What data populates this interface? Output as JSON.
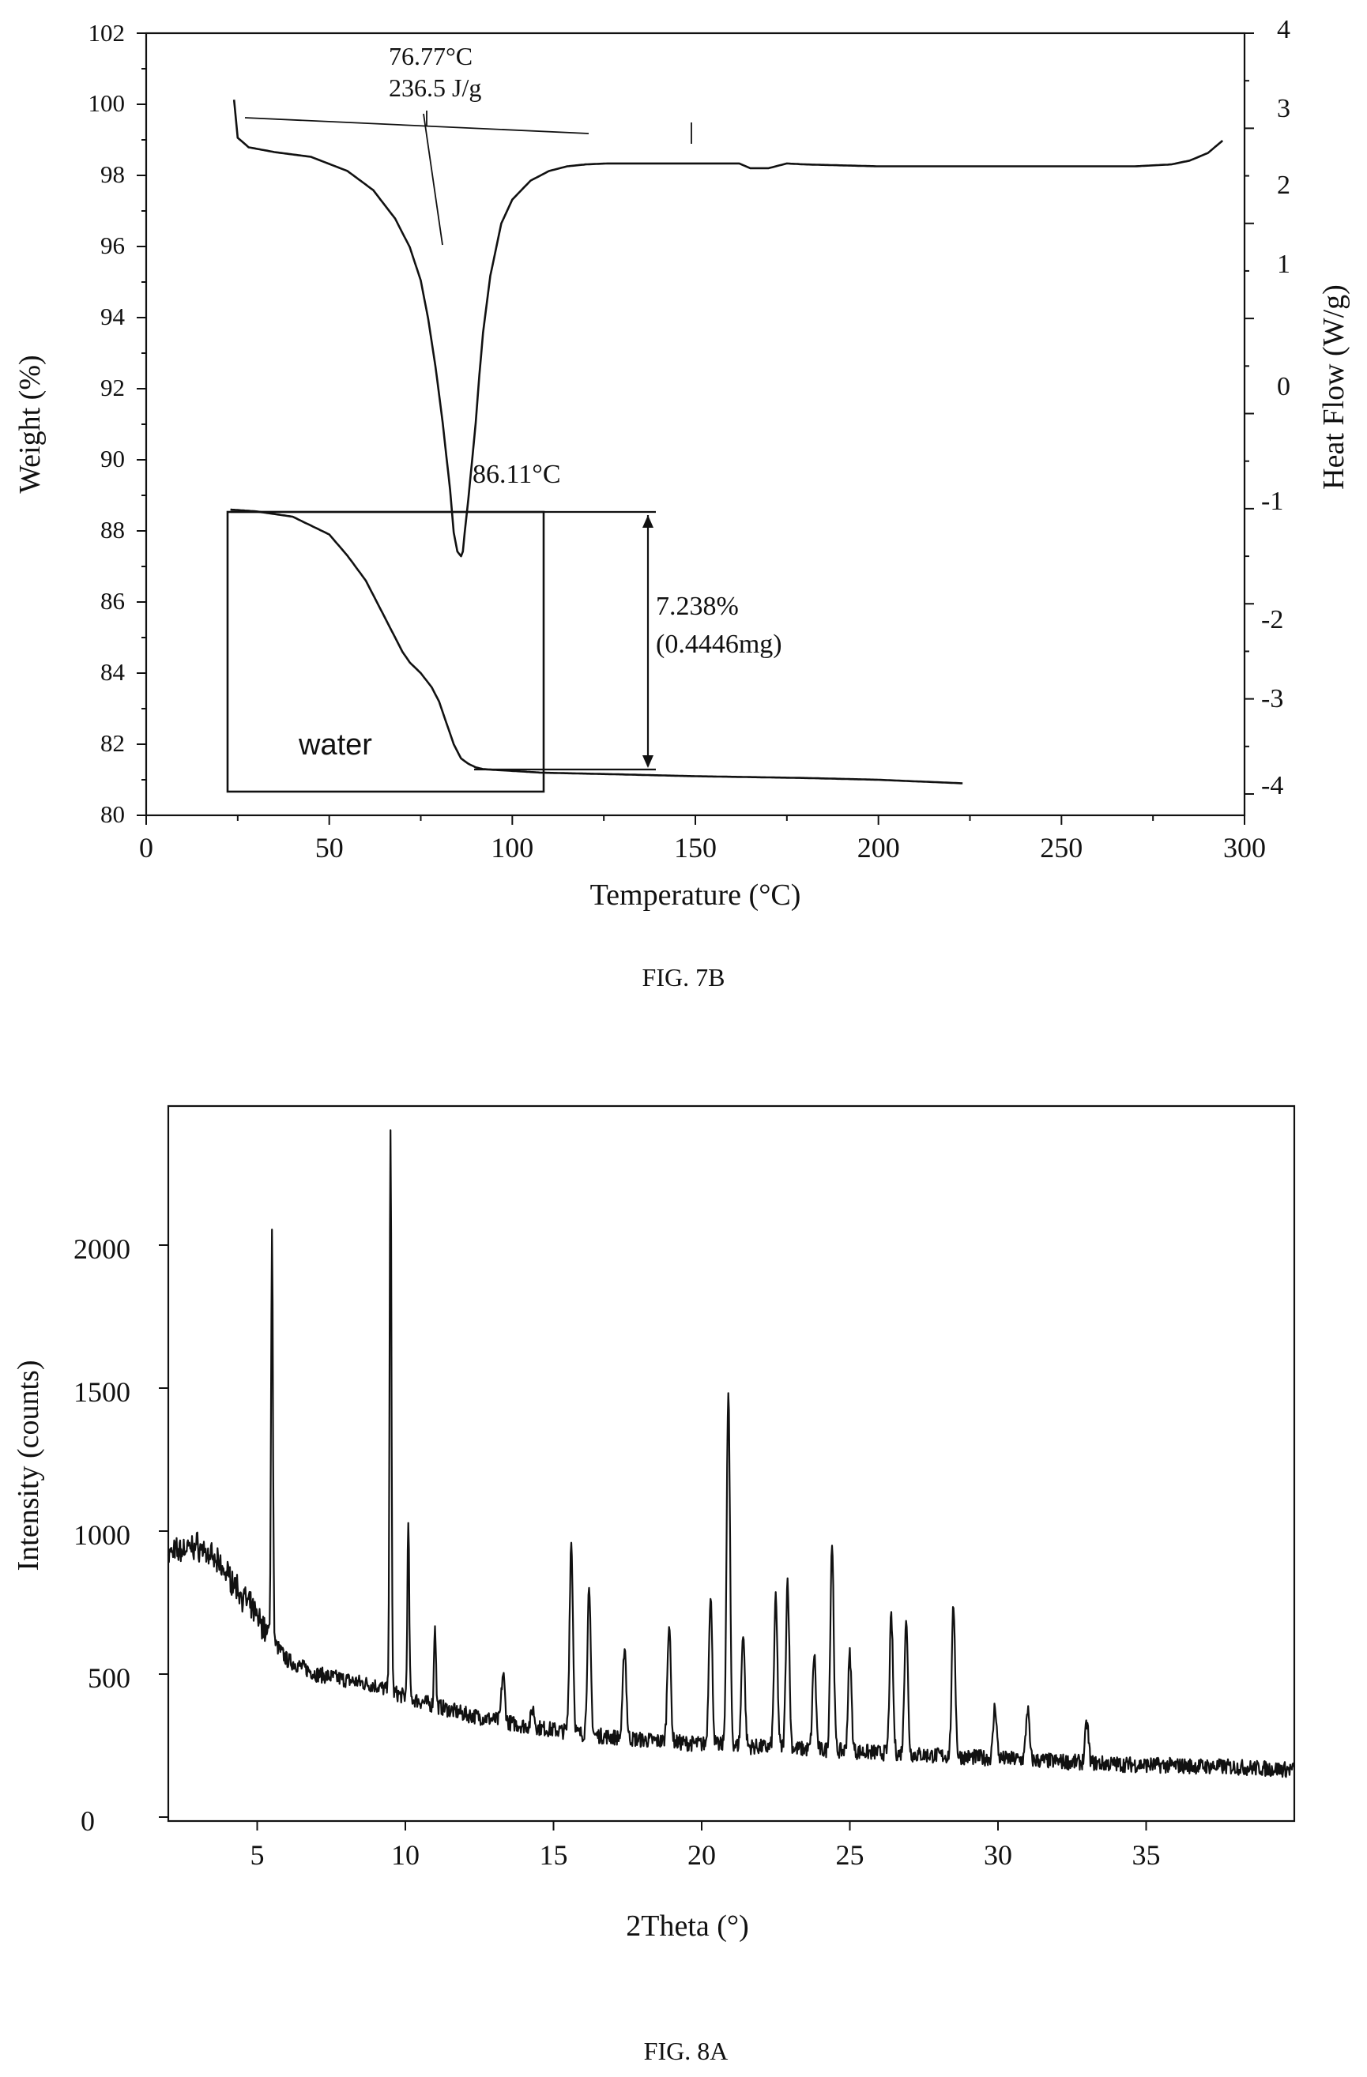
{
  "chart_data": [
    {
      "type": "line",
      "caption": "FIG. 7B",
      "xlabel": "Temperature (°C)",
      "ylabel": "Weight (%)",
      "y2label": "Heat Flow (W/g)",
      "xlim": [
        0,
        300
      ],
      "ylim": [
        80,
        102
      ],
      "y2lim": [
        -4,
        4
      ],
      "x_ticks": [
        "0",
        "50",
        "100",
        "150",
        "200",
        "250",
        "300"
      ],
      "y_ticks": [
        "80",
        "82",
        "84",
        "86",
        "88",
        "90",
        "92",
        "94",
        "96",
        "98",
        "100",
        "102"
      ],
      "y2_ticks": [
        "-4",
        "-3",
        "-2",
        "-1",
        "0",
        "1",
        "2",
        "3",
        "4"
      ],
      "grid": false,
      "annotations": {
        "onset_temp": "76.77°C",
        "enthalpy": "236.5 J/g",
        "peak_temp": "86.11°C",
        "weight_loss": "7.238%",
        "weight_loss_mass": "(0.4446mg)",
        "inset_label": "water"
      },
      "series": [
        {
          "name": "Heat Flow",
          "axis": "y2",
          "x": [
            24,
            25,
            28,
            35,
            45,
            55,
            62,
            68,
            72,
            75,
            77,
            79,
            81,
            83,
            84,
            85,
            86,
            86.5,
            87,
            88,
            89,
            90,
            91,
            92,
            94,
            97,
            100,
            105,
            110,
            115,
            120,
            126,
            150,
            162,
            165,
            170,
            175,
            180,
            200,
            230,
            270,
            280,
            285,
            290,
            294
          ],
          "values": [
            3.3,
            2.9,
            2.8,
            2.75,
            2.7,
            2.55,
            2.35,
            2.05,
            1.75,
            1.4,
            1.0,
            0.5,
            -0.1,
            -0.8,
            -1.25,
            -1.45,
            -1.5,
            -1.45,
            -1.25,
            -0.9,
            -0.5,
            -0.1,
            0.4,
            0.85,
            1.45,
            2.0,
            2.25,
            2.45,
            2.55,
            2.6,
            2.62,
            2.63,
            2.63,
            2.63,
            2.58,
            2.58,
            2.63,
            2.62,
            2.6,
            2.6,
            2.6,
            2.62,
            2.66,
            2.74,
            2.87
          ]
        },
        {
          "name": "Weight",
          "axis": "y",
          "x": [
            23,
            30,
            40,
            50,
            55,
            60,
            65,
            70,
            72,
            75,
            78,
            80,
            82,
            84,
            86,
            88,
            90,
            92,
            95,
            100,
            108,
            130,
            150,
            180,
            200,
            223
          ],
          "values": [
            88.6,
            88.55,
            88.4,
            87.9,
            87.3,
            86.6,
            85.6,
            84.6,
            84.3,
            84.0,
            83.6,
            83.2,
            82.6,
            82.0,
            81.6,
            81.45,
            81.35,
            81.3,
            81.28,
            81.25,
            81.2,
            81.15,
            81.1,
            81.05,
            81.0,
            80.9
          ]
        }
      ]
    },
    {
      "type": "line",
      "caption": "FIG. 8A",
      "xlabel": "2Theta (°)",
      "ylabel": "Intensity (counts)",
      "xlim": [
        2,
        40
      ],
      "ylim": [
        0,
        2500
      ],
      "x_ticks": [
        "5",
        "10",
        "15",
        "20",
        "25",
        "30",
        "35"
      ],
      "y_ticks": [
        "0",
        "500",
        "1000",
        "1500",
        "2000"
      ],
      "grid": false,
      "baseline": {
        "x": [
          2,
          3,
          4,
          5,
          5.3,
          6,
          7,
          8,
          9,
          10,
          12,
          14,
          16,
          18,
          20,
          22,
          24,
          26,
          28,
          30,
          32,
          34,
          36,
          38,
          40
        ],
        "values": [
          920,
          950,
          850,
          700,
          650,
          550,
          500,
          480,
          460,
          420,
          360,
          320,
          290,
          270,
          255,
          245,
          235,
          225,
          215,
          205,
          195,
          185,
          180,
          175,
          165
        ]
      },
      "peaks": {
        "x": [
          5.5,
          9.5,
          10.1,
          11.0,
          13.3,
          14.3,
          15.6,
          16.2,
          17.4,
          18.9,
          20.3,
          20.9,
          21.4,
          22.5,
          22.9,
          23.8,
          24.4,
          25.0,
          26.4,
          26.9,
          28.5,
          29.9,
          31.0,
          33.0
        ],
        "values": [
          2040,
          2380,
          1020,
          680,
          500,
          380,
          960,
          780,
          600,
          680,
          780,
          1480,
          650,
          760,
          830,
          570,
          960,
          570,
          700,
          700,
          740,
          390,
          380,
          330
        ]
      }
    }
  ]
}
